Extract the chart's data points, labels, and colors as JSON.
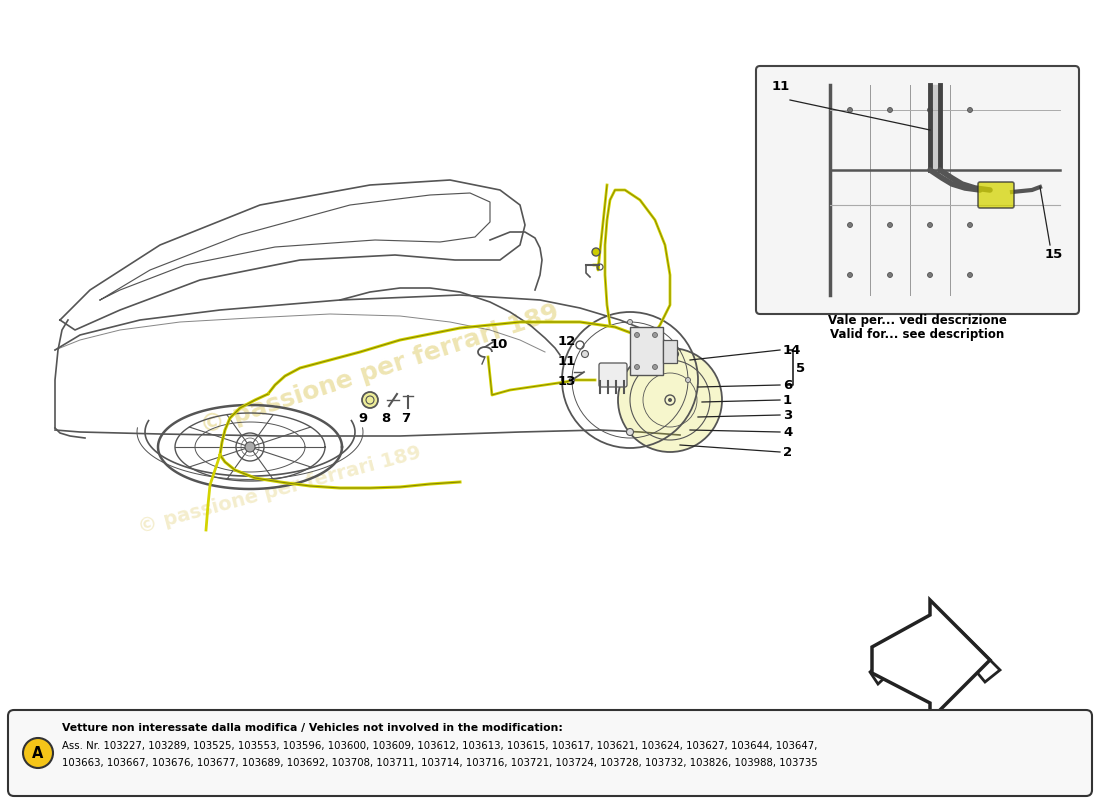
{
  "bg_color": "#ffffff",
  "fig_width": 11.0,
  "fig_height": 8.0,
  "bottom_box_text_line1": "Vetture non interessate dalla modifica / Vehicles not involved in the modification:",
  "bottom_box_text_line2": "Ass. Nr. 103227, 103289, 103525, 103553, 103596, 103600, 103609, 103612, 103613, 103615, 103617, 103621, 103624, 103627, 103644, 103647,",
  "bottom_box_text_line3": "103663, 103667, 103676, 103677, 103689, 103692, 103708, 103711, 103714, 103716, 103721, 103724, 103728, 103732, 103826, 103988, 103735",
  "inset_label_top": "Vale per... vedi descrizione",
  "inset_label_bottom": "Valid for... see description",
  "circle_A_color": "#f5c518",
  "highlight_color": "#d4d400",
  "car_color": "#555555",
  "line_color": "#222222",
  "watermark_color": "#c8a800"
}
